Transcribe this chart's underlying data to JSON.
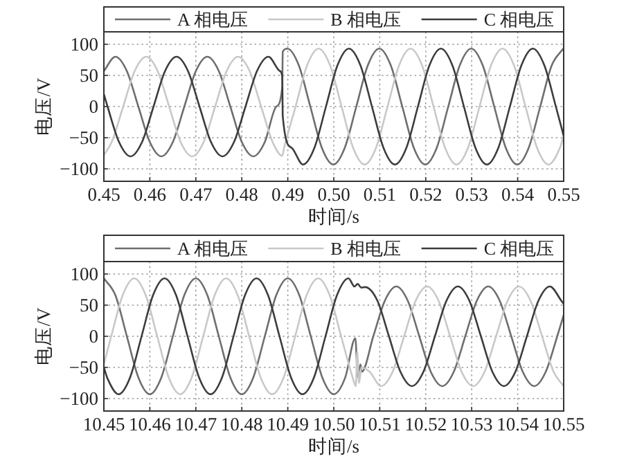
{
  "chart_data": [
    {
      "type": "line",
      "xlabel": "时间/s",
      "ylabel": "电压/V",
      "xlim": [
        0.45,
        0.55
      ],
      "ylim": [
        -120,
        120
      ],
      "xticks": [
        0.45,
        0.46,
        0.47,
        0.48,
        0.49,
        {
          "value": 0.5,
          "label": "0.50"
        },
        0.51,
        0.52,
        0.53,
        0.54,
        0.55
      ],
      "yticks": [
        -100,
        -50,
        0,
        50,
        100
      ],
      "grid": true,
      "legend": "top",
      "series": [
        {
          "name": "A 相电压",
          "color": "#6e6e6e",
          "x": [
            0.45,
            0.4525,
            0.455,
            0.4575,
            0.46,
            0.4625,
            0.465,
            0.4675,
            0.47,
            0.4725,
            0.475,
            0.4775,
            0.48,
            0.4825,
            0.485,
            0.4875,
            0.4888,
            0.4889,
            0.4899,
            0.4924,
            0.4949,
            0.4974,
            0.4999,
            0.5024,
            0.5049,
            0.5074,
            0.5099,
            0.5124,
            0.5149,
            0.5174,
            0.5199,
            0.5224,
            0.5249,
            0.5274,
            0.5299,
            0.5324,
            0.5349,
            0.5374,
            0.5399,
            0.5424,
            0.5449,
            0.5474,
            0.5499
          ],
          "values": [
            57,
            80,
            57,
            0,
            -57,
            -80,
            -57,
            0,
            57,
            80,
            57,
            0,
            -57,
            -80,
            -57,
            0,
            32,
            88,
            93,
            66,
            0,
            -66,
            -93,
            -66,
            0,
            66,
            93,
            66,
            0,
            -66,
            -93,
            -66,
            0,
            66,
            93,
            66,
            0,
            -66,
            -93,
            -66,
            0,
            66,
            93
          ]
        },
        {
          "name": "B 相电压",
          "color": "#c8c8c8",
          "x": [
            0.45,
            0.4517,
            0.4542,
            0.4567,
            0.4592,
            0.4617,
            0.4642,
            0.4667,
            0.4692,
            0.4717,
            0.4742,
            0.4767,
            0.4792,
            0.4817,
            0.4842,
            0.4867,
            0.4888,
            0.4892,
            0.4917,
            0.4942,
            0.4967,
            0.4992,
            0.5017,
            0.5042,
            0.5067,
            0.5092,
            0.5117,
            0.5142,
            0.5167,
            0.5192,
            0.5217,
            0.5242,
            0.5267,
            0.5292,
            0.5317,
            0.5342,
            0.5367,
            0.5392,
            0.5417,
            0.5442,
            0.5467,
            0.5492,
            0.55
          ],
          "values": [
            -78,
            -57,
            0,
            57,
            80,
            57,
            0,
            -57,
            -80,
            -57,
            0,
            57,
            80,
            57,
            0,
            -57,
            -79,
            -66,
            0,
            66,
            93,
            66,
            0,
            -66,
            -93,
            -66,
            0,
            66,
            93,
            66,
            0,
            -66,
            -93,
            -66,
            0,
            66,
            93,
            66,
            0,
            -66,
            -93,
            -66,
            -47
          ]
        },
        {
          "name": "C 相电压",
          "color": "#3c3c3c",
          "x": [
            0.45,
            0.4508,
            0.4533,
            0.4558,
            0.4583,
            0.4608,
            0.4633,
            0.4658,
            0.4683,
            0.4708,
            0.4733,
            0.4758,
            0.4783,
            0.4808,
            0.4833,
            0.4858,
            0.4883,
            0.4888,
            0.4889,
            0.4908,
            0.4933,
            0.4958,
            0.4983,
            0.5008,
            0.5033,
            0.5058,
            0.5083,
            0.5108,
            0.5133,
            0.5158,
            0.5183,
            0.5208,
            0.5233,
            0.5258,
            0.5283,
            0.5308,
            0.5333,
            0.5358,
            0.5383,
            0.5408,
            0.5433,
            0.5458,
            0.5483,
            0.55
          ],
          "values": [
            20,
            0,
            -57,
            -80,
            -57,
            0,
            57,
            80,
            57,
            0,
            -57,
            -80,
            -57,
            0,
            57,
            80,
            57,
            47,
            -15,
            -66,
            -93,
            -66,
            0,
            66,
            93,
            66,
            0,
            -66,
            -93,
            -66,
            0,
            66,
            93,
            66,
            0,
            -66,
            -93,
            -66,
            0,
            66,
            93,
            66,
            0,
            -47
          ]
        }
      ]
    },
    {
      "type": "line",
      "xlabel": "时间/s",
      "ylabel": "电压/V",
      "xlim": [
        10.45,
        10.55
      ],
      "ylim": [
        -120,
        120
      ],
      "xticks": [
        10.45,
        10.46,
        10.47,
        10.48,
        10.49,
        {
          "value": 10.5,
          "label": "10.50"
        },
        10.51,
        10.52,
        10.53,
        10.54,
        10.55
      ],
      "yticks": [
        -100,
        -50,
        0,
        50,
        100
      ],
      "grid": true,
      "legend": "top",
      "series": [
        {
          "name": "A 相电压",
          "color": "#6e6e6e",
          "x": [
            10.45,
            10.4525,
            10.455,
            10.4575,
            10.46,
            10.4625,
            10.465,
            10.4675,
            10.47,
            10.4725,
            10.475,
            10.4775,
            10.48,
            10.4825,
            10.485,
            10.4875,
            10.49,
            10.4925,
            10.495,
            10.4975,
            10.5,
            10.5025,
            10.5047,
            10.5052,
            10.5058,
            10.5061,
            10.5086,
            10.5111,
            10.5136,
            10.5161,
            10.5186,
            10.5211,
            10.5236,
            10.5261,
            10.5286,
            10.5311,
            10.5336,
            10.5361,
            10.5386,
            10.5411,
            10.5436,
            10.5461,
            10.5486,
            10.55
          ],
          "values": [
            93,
            66,
            0,
            -66,
            -93,
            -66,
            0,
            66,
            93,
            66,
            0,
            -66,
            -93,
            -66,
            0,
            66,
            93,
            66,
            0,
            -66,
            -93,
            -66,
            -3,
            -65,
            -45,
            -57,
            0,
            57,
            80,
            57,
            0,
            -57,
            -80,
            -57,
            0,
            57,
            80,
            57,
            0,
            -57,
            -80,
            -57,
            0,
            34
          ]
        },
        {
          "name": "B 相电压",
          "color": "#c8c8c8",
          "x": [
            10.45,
            10.4516,
            10.4541,
            10.4566,
            10.4591,
            10.4616,
            10.4641,
            10.4666,
            10.4691,
            10.4716,
            10.4741,
            10.4766,
            10.4791,
            10.4816,
            10.4841,
            10.4866,
            10.4891,
            10.4916,
            10.4941,
            10.4966,
            10.4991,
            10.5016,
            10.5041,
            10.5048,
            10.5051,
            10.5055,
            10.506,
            10.5078,
            10.5103,
            10.5128,
            10.5153,
            10.5178,
            10.5203,
            10.5228,
            10.5253,
            10.5278,
            10.5303,
            10.5328,
            10.5353,
            10.5378,
            10.5403,
            10.5428,
            10.5453,
            10.5478,
            10.55
          ],
          "values": [
            -45,
            0,
            66,
            93,
            66,
            0,
            -66,
            -93,
            -66,
            0,
            66,
            93,
            66,
            0,
            -66,
            -93,
            -66,
            0,
            66,
            93,
            66,
            0,
            -66,
            -80,
            -25,
            -75,
            -50,
            -57,
            -80,
            -57,
            0,
            57,
            80,
            57,
            0,
            -57,
            -80,
            -57,
            0,
            57,
            80,
            57,
            0,
            -57,
            -80
          ]
        },
        {
          "name": "C 相电压",
          "color": "#3c3c3c",
          "x": [
            10.45,
            10.4507,
            10.4532,
            10.4557,
            10.4582,
            10.4607,
            10.4632,
            10.4657,
            10.4682,
            10.4707,
            10.4732,
            10.4757,
            10.4782,
            10.4807,
            10.4832,
            10.4857,
            10.4882,
            10.4907,
            10.4932,
            10.4957,
            10.4982,
            10.5007,
            10.5032,
            10.5045,
            10.5052,
            10.506,
            10.5068,
            10.5095,
            10.512,
            10.5145,
            10.517,
            10.5195,
            10.522,
            10.5245,
            10.527,
            10.5295,
            10.532,
            10.5345,
            10.537,
            10.5395,
            10.542,
            10.5445,
            10.547,
            10.5495,
            10.55
          ],
          "values": [
            -50,
            -66,
            -93,
            -66,
            0,
            66,
            93,
            66,
            0,
            -66,
            -93,
            -66,
            0,
            66,
            93,
            66,
            0,
            -66,
            -93,
            -66,
            0,
            66,
            93,
            80,
            84,
            78,
            79,
            57,
            0,
            -57,
            -80,
            -57,
            0,
            57,
            80,
            57,
            0,
            -57,
            -80,
            -57,
            0,
            57,
            80,
            57,
            52
          ]
        }
      ]
    }
  ]
}
